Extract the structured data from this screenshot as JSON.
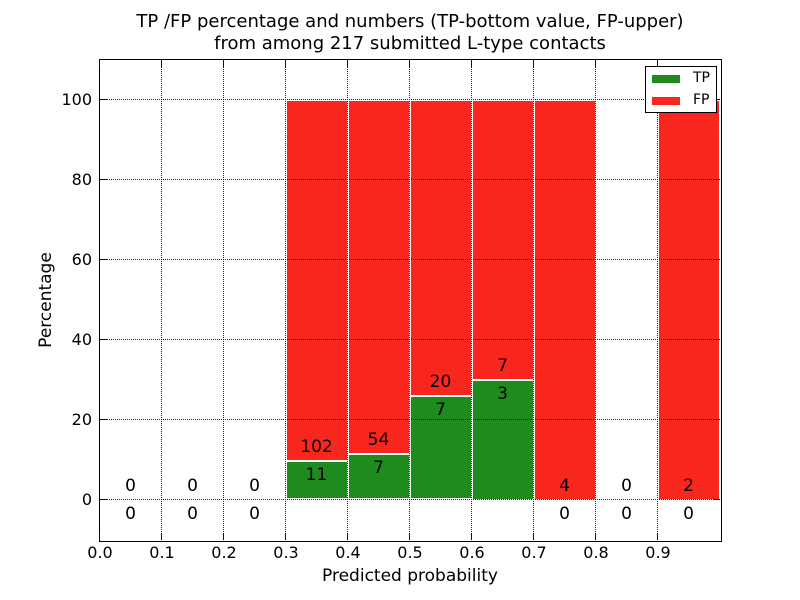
{
  "title": {
    "line1": "TP /FP percentage and numbers (TP-bottom value, FP-upper)",
    "line2": "from among 217 submitted L-type contacts"
  },
  "axes": {
    "xlabel": "Predicted probability",
    "ylabel": "Percentage",
    "xtick_labels": [
      "0.0",
      "0.1",
      "0.2",
      "0.3",
      "0.4",
      "0.5",
      "0.6",
      "0.7",
      "0.8",
      "0.9"
    ],
    "ytick_values": [
      0,
      20,
      40,
      60,
      80,
      100
    ],
    "xlim": [
      0.0,
      1.0
    ],
    "ylim": [
      -10,
      110
    ],
    "grid": "dotted, drawn above bars"
  },
  "legend": {
    "position": "upper right",
    "items": [
      {
        "label": "TP",
        "color_key": "tp"
      },
      {
        "label": "FP",
        "color_key": "fp"
      }
    ]
  },
  "colors": {
    "tp": "#1f8b1f",
    "fp": "#f8261d",
    "grid": "#222222",
    "text": "#000000",
    "background": "#ffffff"
  },
  "chart_data": {
    "type": "bar",
    "stacked": true,
    "description": "Each 0.1-wide predicted-probability bin is normalized to 100%: green bottom segment = TP share, red upper segment = FP share. Printed numbers are raw counts: TP below the segment boundary, FP above it.",
    "total_contacts": 217,
    "bin_edges": [
      0.0,
      0.1,
      0.2,
      0.3,
      0.4,
      0.5,
      0.6,
      0.7,
      0.8,
      0.9,
      1.0
    ],
    "bins": [
      {
        "range": "0.0-0.1",
        "tp": 0,
        "fp": 0,
        "tp_pct": 0,
        "fp_pct": 0
      },
      {
        "range": "0.1-0.2",
        "tp": 0,
        "fp": 0,
        "tp_pct": 0,
        "fp_pct": 0
      },
      {
        "range": "0.2-0.3",
        "tp": 0,
        "fp": 0,
        "tp_pct": 0,
        "fp_pct": 0
      },
      {
        "range": "0.3-0.4",
        "tp": 11,
        "fp": 102,
        "tp_pct": 9.7,
        "fp_pct": 90.3
      },
      {
        "range": "0.4-0.5",
        "tp": 7,
        "fp": 54,
        "tp_pct": 11.5,
        "fp_pct": 88.5
      },
      {
        "range": "0.5-0.6",
        "tp": 7,
        "fp": 20,
        "tp_pct": 25.9,
        "fp_pct": 74.1
      },
      {
        "range": "0.6-0.7",
        "tp": 3,
        "fp": 7,
        "tp_pct": 30.0,
        "fp_pct": 70.0
      },
      {
        "range": "0.7-0.8",
        "tp": 0,
        "fp": 4,
        "tp_pct": 0,
        "fp_pct": 100
      },
      {
        "range": "0.8-0.9",
        "tp": 0,
        "fp": 0,
        "tp_pct": 0,
        "fp_pct": 0
      },
      {
        "range": "0.9-1.0",
        "tp": 0,
        "fp": 2,
        "tp_pct": 0,
        "fp_pct": 100
      }
    ],
    "series": [
      {
        "name": "TP",
        "counts": [
          0,
          0,
          0,
          11,
          7,
          7,
          3,
          0,
          0,
          0
        ]
      },
      {
        "name": "FP",
        "counts": [
          0,
          0,
          0,
          102,
          54,
          20,
          7,
          4,
          0,
          2
        ]
      }
    ]
  }
}
